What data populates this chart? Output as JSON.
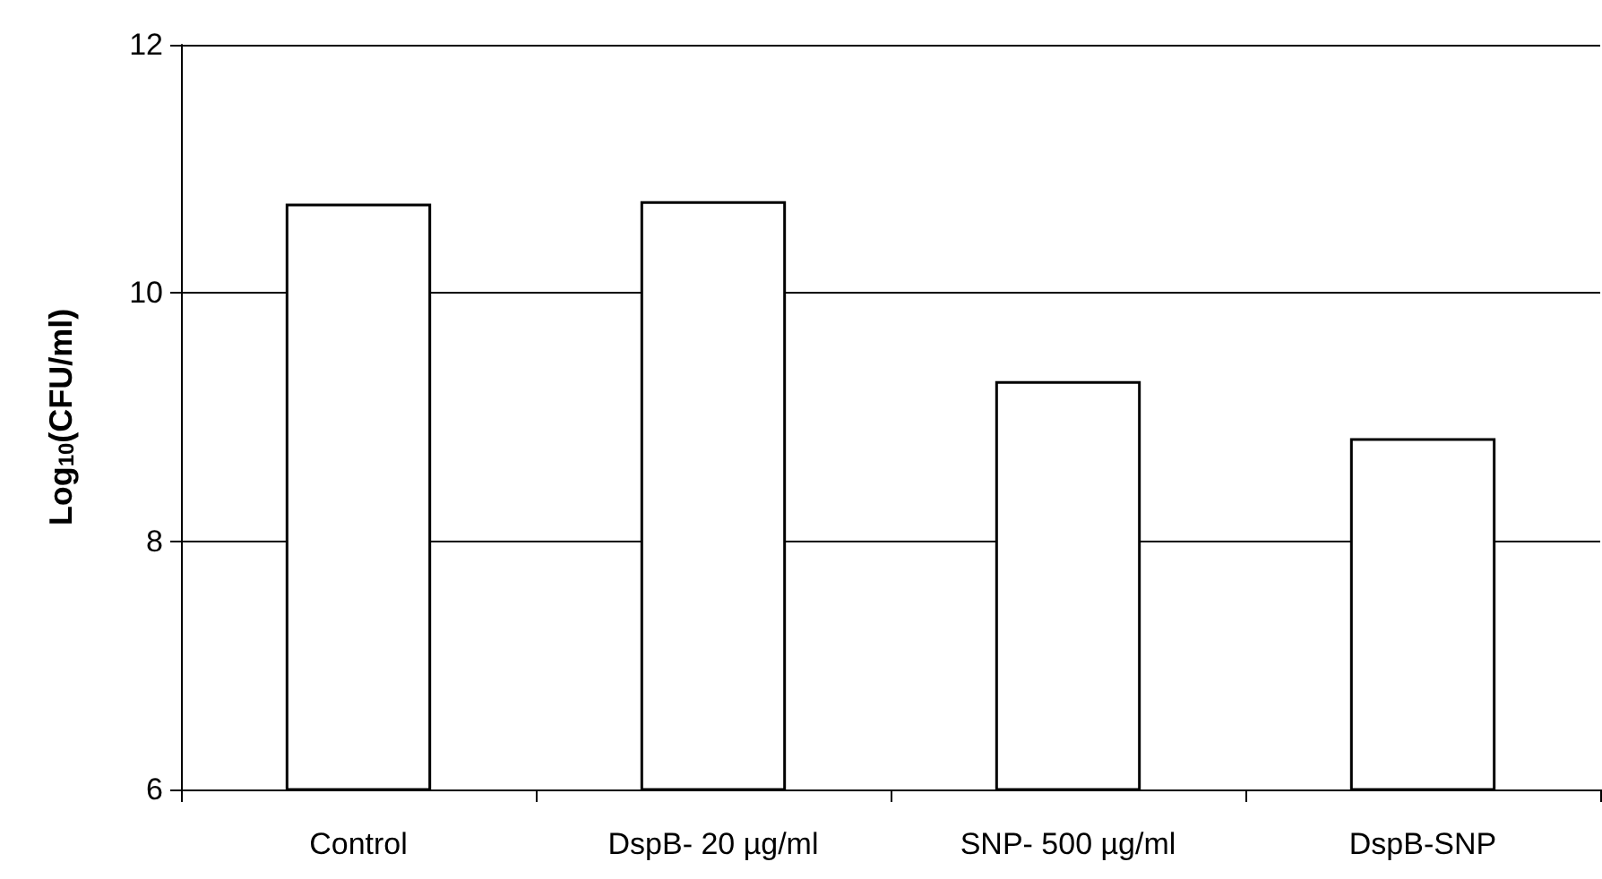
{
  "chart_data": {
    "type": "bar",
    "ylabel": "Log$_{10}$(CFU/ml)",
    "categories": [
      "Control",
      "DspB- 20 µg/ml",
      "SNP- 500 µg/ml",
      "DspB-SNP"
    ],
    "values": [
      10.72,
      10.74,
      9.29,
      8.83
    ],
    "color": "#ffffff",
    "ylim": [
      6,
      12
    ],
    "yticks": [
      6,
      8,
      10,
      12
    ],
    "grid": "y"
  }
}
